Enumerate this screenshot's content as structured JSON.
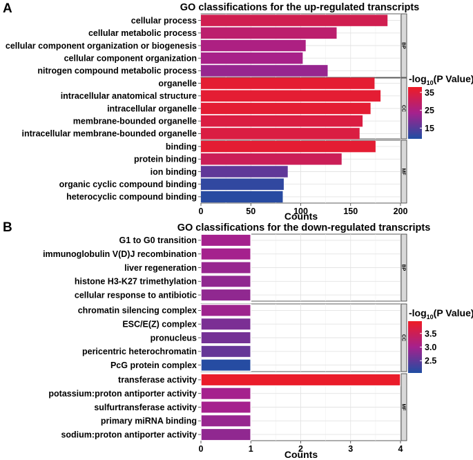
{
  "colors": {
    "high": "#ee1c25",
    "mid": "#a5218d",
    "low": "#1f4ea3"
  },
  "chart_data": [
    {
      "type": "bar",
      "orientation": "horizontal",
      "panel_letter": "A",
      "title": "GO classifications for the up-regulated transcripts",
      "xlabel": "Counts",
      "xlim": [
        0,
        200
      ],
      "xticks": [
        0,
        50,
        100,
        150,
        200
      ],
      "legend": {
        "title_prefix": "-log",
        "title_sub": "10",
        "title_suffix": "(P Value)",
        "min": 9,
        "max": 38,
        "ticks": [
          15,
          25,
          35
        ]
      },
      "facets": [
        {
          "name": "BP",
          "categories": [
            {
              "label": "cellular process",
              "value": 187,
              "pvalue": 32
            },
            {
              "label": "cellular metabolic process",
              "value": 136,
              "pvalue": 28
            },
            {
              "label": "cellular component organization or biogenesis",
              "value": 105,
              "pvalue": 25
            },
            {
              "label": "cellular component organization",
              "value": 102,
              "pvalue": 24
            },
            {
              "label": "nitrogen compound metabolic process",
              "value": 127,
              "pvalue": 22
            }
          ]
        },
        {
          "name": "CC",
          "categories": [
            {
              "label": "organelle",
              "value": 174,
              "pvalue": 36
            },
            {
              "label": "intracellular anatomical structure",
              "value": 180,
              "pvalue": 36
            },
            {
              "label": "intracellular organelle",
              "value": 170,
              "pvalue": 36
            },
            {
              "label": "membrane-bounded organelle",
              "value": 162,
              "pvalue": 34
            },
            {
              "label": "intracellular membrane-bounded organelle",
              "value": 159,
              "pvalue": 34
            }
          ]
        },
        {
          "name": "MF",
          "categories": [
            {
              "label": "binding",
              "value": 175,
              "pvalue": 36
            },
            {
              "label": "protein binding",
              "value": 141,
              "pvalue": 31
            },
            {
              "label": "ion binding",
              "value": 87,
              "pvalue": 16
            },
            {
              "label": "organic cyclic compound binding",
              "value": 83,
              "pvalue": 11
            },
            {
              "label": "heterocyclic compound binding",
              "value": 82,
              "pvalue": 10
            }
          ]
        }
      ]
    },
    {
      "type": "bar",
      "orientation": "horizontal",
      "panel_letter": "B",
      "title": "GO classifications for the down-regulated transcripts",
      "xlabel": "Counts",
      "xlim": [
        0,
        4
      ],
      "xticks": [
        0,
        1,
        2,
        3,
        4
      ],
      "legend": {
        "title_prefix": "-log",
        "title_sub": "10",
        "title_suffix": "(P Value)",
        "min": 2.05,
        "max": 3.95,
        "ticks": [
          2.5,
          3.0,
          3.5
        ]
      },
      "facets": [
        {
          "name": "BP",
          "categories": [
            {
              "label": "G1 to G0 transition",
              "value": 1,
              "pvalue": 3.0
            },
            {
              "label": "immunoglobulin V(D)J recombination",
              "value": 1,
              "pvalue": 3.0
            },
            {
              "label": "liver regeneration",
              "value": 1,
              "pvalue": 2.9
            },
            {
              "label": "histone H3-K27 trimethylation",
              "value": 1,
              "pvalue": 2.85
            },
            {
              "label": "cellular response to antibiotic",
              "value": 1,
              "pvalue": 2.85
            }
          ]
        },
        {
          "name": "CC",
          "categories": [
            {
              "label": "chromatin silencing complex",
              "value": 1,
              "pvalue": 2.95
            },
            {
              "label": "ESC/E(Z) complex",
              "value": 1,
              "pvalue": 2.7
            },
            {
              "label": "pronucleus",
              "value": 1,
              "pvalue": 2.65
            },
            {
              "label": "pericentric heterochromatin",
              "value": 1,
              "pvalue": 2.55
            },
            {
              "label": "PcG protein complex",
              "value": 1,
              "pvalue": 2.1
            }
          ]
        },
        {
          "name": "MF",
          "categories": [
            {
              "label": "transferase activity",
              "value": 4,
              "pvalue": 3.9
            },
            {
              "label": "potassium:proton antiporter activity",
              "value": 1,
              "pvalue": 3.0
            },
            {
              "label": "sulfurtransferase activity",
              "value": 1,
              "pvalue": 3.0
            },
            {
              "label": "primary miRNA binding",
              "value": 1,
              "pvalue": 2.9
            },
            {
              "label": "sodium:proton antiporter activity",
              "value": 1,
              "pvalue": 2.85
            }
          ]
        }
      ]
    }
  ]
}
